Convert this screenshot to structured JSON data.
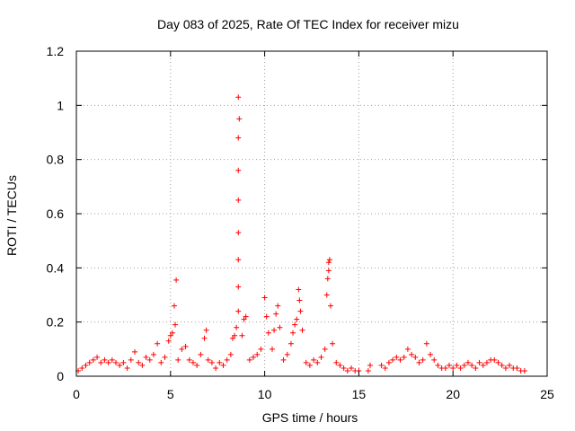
{
  "chart_data": {
    "type": "scatter",
    "title": "Day 083 of 2025, Rate Of TEC Index for receiver mizu",
    "xlabel": "GPS time / hours",
    "ylabel": "ROTI / TECUs",
    "xlim": [
      0,
      25
    ],
    "ylim": [
      0,
      1.2
    ],
    "xticks": [
      0,
      5,
      10,
      15,
      20,
      25
    ],
    "yticks": [
      0,
      0.2,
      0.4,
      0.6,
      0.8,
      1,
      1.2
    ],
    "xtick_labels": [
      "0",
      "5",
      "10",
      "15",
      "20",
      "25"
    ],
    "ytick_labels": [
      "0",
      "0.2",
      "0.4",
      "0.6",
      "0.8",
      "1",
      "1.2"
    ],
    "grid": true,
    "marker": "+",
    "color": "#ff0000",
    "series": [
      {
        "points": [
          [
            0.1,
            0.02
          ],
          [
            0.3,
            0.03
          ],
          [
            0.5,
            0.04
          ],
          [
            0.7,
            0.05
          ],
          [
            0.9,
            0.06
          ],
          [
            1.1,
            0.07
          ],
          [
            1.3,
            0.05
          ],
          [
            1.5,
            0.06
          ],
          [
            1.7,
            0.05
          ],
          [
            1.9,
            0.06
          ],
          [
            2.1,
            0.05
          ],
          [
            2.3,
            0.04
          ],
          [
            2.5,
            0.05
          ],
          [
            2.7,
            0.03
          ],
          [
            2.9,
            0.06
          ],
          [
            3.1,
            0.09
          ],
          [
            3.3,
            0.05
          ],
          [
            3.5,
            0.04
          ],
          [
            3.7,
            0.07
          ],
          [
            3.9,
            0.06
          ],
          [
            4.1,
            0.08
          ],
          [
            4.3,
            0.12
          ],
          [
            4.5,
            0.05
          ],
          [
            4.7,
            0.07
          ],
          [
            4.9,
            0.13
          ],
          [
            5.0,
            0.15
          ],
          [
            5.1,
            0.16
          ],
          [
            5.2,
            0.26
          ],
          [
            5.25,
            0.19
          ],
          [
            5.3,
            0.355
          ],
          [
            5.4,
            0.06
          ],
          [
            5.6,
            0.1
          ],
          [
            5.8,
            0.11
          ],
          [
            6.0,
            0.06
          ],
          [
            6.2,
            0.05
          ],
          [
            6.4,
            0.04
          ],
          [
            6.6,
            0.08
          ],
          [
            6.8,
            0.14
          ],
          [
            6.9,
            0.17
          ],
          [
            7.0,
            0.06
          ],
          [
            7.2,
            0.05
          ],
          [
            7.4,
            0.03
          ],
          [
            7.6,
            0.05
          ],
          [
            7.8,
            0.04
          ],
          [
            8.0,
            0.06
          ],
          [
            8.2,
            0.08
          ],
          [
            8.3,
            0.14
          ],
          [
            8.4,
            0.15
          ],
          [
            8.5,
            0.18
          ],
          [
            8.6,
            0.24
          ],
          [
            8.6,
            0.33
          ],
          [
            8.6,
            0.43
          ],
          [
            8.6,
            0.53
          ],
          [
            8.6,
            0.65
          ],
          [
            8.6,
            0.76
          ],
          [
            8.6,
            0.88
          ],
          [
            8.65,
            0.95
          ],
          [
            8.6,
            1.03
          ],
          [
            8.8,
            0.15
          ],
          [
            8.9,
            0.21
          ],
          [
            9.0,
            0.22
          ],
          [
            9.2,
            0.06
          ],
          [
            9.4,
            0.07
          ],
          [
            9.6,
            0.08
          ],
          [
            9.8,
            0.1
          ],
          [
            10.0,
            0.29
          ],
          [
            10.1,
            0.22
          ],
          [
            10.2,
            0.16
          ],
          [
            10.4,
            0.1
          ],
          [
            10.5,
            0.17
          ],
          [
            10.6,
            0.23
          ],
          [
            10.7,
            0.26
          ],
          [
            10.8,
            0.18
          ],
          [
            11.0,
            0.06
          ],
          [
            11.2,
            0.08
          ],
          [
            11.4,
            0.12
          ],
          [
            11.5,
            0.16
          ],
          [
            11.6,
            0.19
          ],
          [
            11.7,
            0.21
          ],
          [
            11.8,
            0.32
          ],
          [
            11.85,
            0.28
          ],
          [
            11.9,
            0.24
          ],
          [
            12.0,
            0.17
          ],
          [
            12.2,
            0.05
          ],
          [
            12.4,
            0.04
          ],
          [
            12.6,
            0.06
          ],
          [
            12.8,
            0.05
          ],
          [
            13.0,
            0.07
          ],
          [
            13.2,
            0.1
          ],
          [
            13.3,
            0.3
          ],
          [
            13.35,
            0.36
          ],
          [
            13.4,
            0.39
          ],
          [
            13.4,
            0.42
          ],
          [
            13.45,
            0.43
          ],
          [
            13.5,
            0.26
          ],
          [
            13.6,
            0.12
          ],
          [
            13.8,
            0.05
          ],
          [
            14.0,
            0.04
          ],
          [
            14.2,
            0.03
          ],
          [
            14.4,
            0.02
          ],
          [
            14.6,
            0.03
          ],
          [
            14.8,
            0.02
          ],
          [
            15.0,
            0.02
          ],
          [
            15.5,
            0.02
          ],
          [
            15.6,
            0.04
          ],
          [
            16.2,
            0.04
          ],
          [
            16.4,
            0.03
          ],
          [
            16.6,
            0.05
          ],
          [
            16.8,
            0.06
          ],
          [
            17.0,
            0.07
          ],
          [
            17.2,
            0.06
          ],
          [
            17.4,
            0.07
          ],
          [
            17.6,
            0.1
          ],
          [
            17.8,
            0.08
          ],
          [
            18.0,
            0.07
          ],
          [
            18.2,
            0.05
          ],
          [
            18.4,
            0.06
          ],
          [
            18.6,
            0.12
          ],
          [
            18.8,
            0.08
          ],
          [
            19.0,
            0.06
          ],
          [
            19.2,
            0.04
          ],
          [
            19.4,
            0.03
          ],
          [
            19.6,
            0.03
          ],
          [
            19.8,
            0.04
          ],
          [
            20.0,
            0.03
          ],
          [
            20.2,
            0.04
          ],
          [
            20.4,
            0.03
          ],
          [
            20.6,
            0.04
          ],
          [
            20.8,
            0.05
          ],
          [
            21.0,
            0.04
          ],
          [
            21.2,
            0.03
          ],
          [
            21.4,
            0.05
          ],
          [
            21.6,
            0.04
          ],
          [
            21.8,
            0.05
          ],
          [
            22.0,
            0.06
          ],
          [
            22.2,
            0.06
          ],
          [
            22.4,
            0.05
          ],
          [
            22.6,
            0.04
          ],
          [
            22.8,
            0.03
          ],
          [
            23.0,
            0.04
          ],
          [
            23.2,
            0.03
          ],
          [
            23.4,
            0.03
          ],
          [
            23.6,
            0.02
          ],
          [
            23.8,
            0.02
          ]
        ]
      }
    ]
  }
}
